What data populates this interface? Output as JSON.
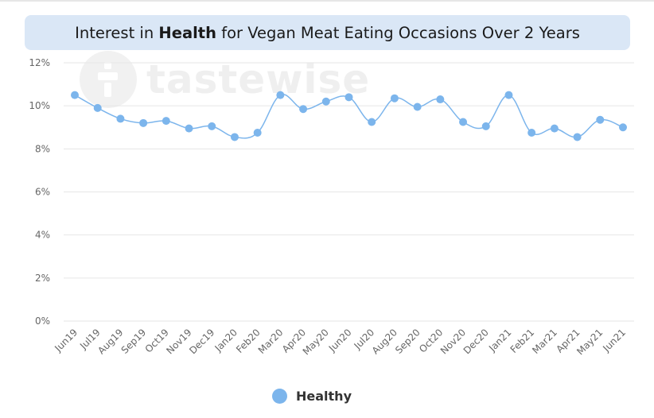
{
  "title": {
    "prefix": "Interest in ",
    "bold": "Health",
    "suffix": " for Vegan Meat Eating Occasions Over 2 Years"
  },
  "watermark": {
    "text": "tastewise"
  },
  "colors": {
    "series": "#7cb5ec",
    "grid": "#e6e6e6",
    "axis_text": "#666666",
    "title_bg": "#dae7f6"
  },
  "legend": {
    "label": "Healthy"
  },
  "chart_data": {
    "type": "line",
    "title": "Interest in Health for Vegan Meat Eating Occasions Over 2 Years",
    "xlabel": "",
    "ylabel": "",
    "ylim": [
      0,
      12
    ],
    "yticks": [
      "0%",
      "2%",
      "4%",
      "6%",
      "8%",
      "10%",
      "12%"
    ],
    "grid": true,
    "legend_position": "bottom-center",
    "categories": [
      "Jun19",
      "Jul19",
      "Aug19",
      "Sep19",
      "Oct19",
      "Nov19",
      "Dec19",
      "Jan20",
      "Feb20",
      "Mar20",
      "Apr20",
      "May20",
      "Jun20",
      "Jul20",
      "Aug20",
      "Sep20",
      "Oct20",
      "Nov20",
      "Dec20",
      "Jan21",
      "Feb21",
      "Mar21",
      "Apr21",
      "May21",
      "Jun21"
    ],
    "series": [
      {
        "name": "Healthy",
        "values": [
          10.5,
          9.9,
          9.4,
          9.2,
          9.3,
          8.95,
          9.05,
          8.55,
          8.75,
          10.5,
          9.85,
          10.2,
          10.4,
          9.25,
          10.35,
          9.95,
          10.3,
          9.25,
          9.05,
          10.5,
          8.75,
          8.95,
          8.55,
          9.35,
          9.0
        ]
      }
    ]
  }
}
